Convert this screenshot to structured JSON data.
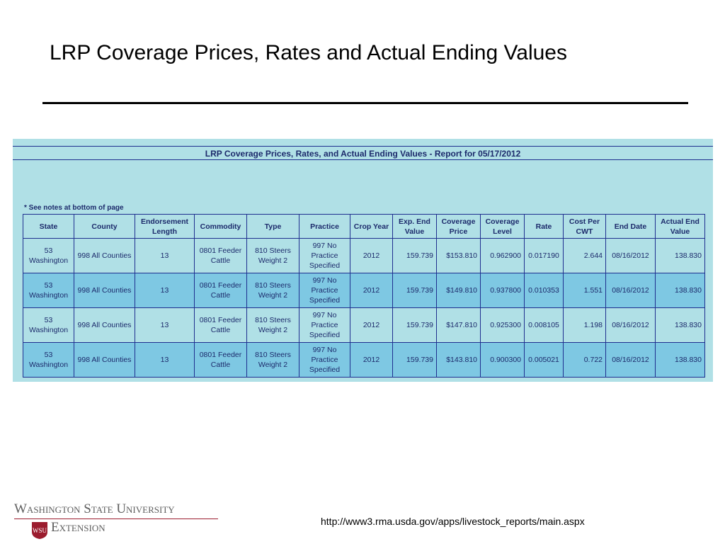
{
  "slide": {
    "title": "LRP Coverage Prices, Rates and Actual Ending Values",
    "source_url": "http://www3.rma.usda.gov/apps/livestock_reports/main.aspx"
  },
  "logo": {
    "line1": "Washington State University",
    "line2": "Extension",
    "seal_text": "WSU",
    "colors": {
      "crimson": "#9b1c2e",
      "gray": "#5e5e5e"
    }
  },
  "report": {
    "header": "LRP Coverage Prices, Rates, and Actual Ending Values - Report for 05/17/2012",
    "notes": "* See notes at bottom of page",
    "columns": [
      "State",
      "County",
      "Endorsement Length",
      "Commodity",
      "Type",
      "Practice",
      "Crop Year",
      "Exp. End Value",
      "Coverage Price",
      "Coverage Level",
      "Rate",
      "Cost Per CWT",
      "End Date",
      "Actual End Value"
    ],
    "rows": [
      [
        "53 Washington",
        "998 All Counties",
        "13",
        "0801 Feeder Cattle",
        "810 Steers Weight 2",
        "997 No Practice Specified",
        "2012",
        "159.739",
        "$153.810",
        "0.962900",
        "0.017190",
        "2.644",
        "08/16/2012",
        "138.830"
      ],
      [
        "53 Washington",
        "998 All Counties",
        "13",
        "0801 Feeder Cattle",
        "810 Steers Weight 2",
        "997 No Practice Specified",
        "2012",
        "159.739",
        "$149.810",
        "0.937800",
        "0.010353",
        "1.551",
        "08/16/2012",
        "138.830"
      ],
      [
        "53 Washington",
        "998 All Counties",
        "13",
        "0801 Feeder Cattle",
        "810 Steers Weight 2",
        "997 No Practice Specified",
        "2012",
        "159.739",
        "$147.810",
        "0.925300",
        "0.008105",
        "1.198",
        "08/16/2012",
        "138.830"
      ],
      [
        "53 Washington",
        "998 All Counties",
        "13",
        "0801 Feeder Cattle",
        "810 Steers Weight 2",
        "997 No Practice Specified",
        "2012",
        "159.739",
        "$143.810",
        "0.900300",
        "0.005021",
        "0.722",
        "08/16/2012",
        "138.830"
      ]
    ],
    "colors": {
      "band_light": "#b0e0e6",
      "band_dark": "#7ec8e3",
      "border": "#1f2f8f",
      "text": "#1c2a6b"
    }
  }
}
